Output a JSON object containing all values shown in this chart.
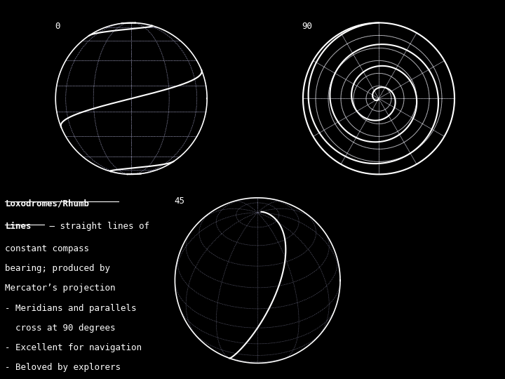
{
  "bg_color": "#000000",
  "text_color": "#ffffff",
  "grid_color": "#ffffff",
  "loxodrome_color": "#ffffff",
  "dotted_color": "#aaaacc",
  "bullets": [
    "Meridians and parallels",
    "  cross at 90 degrees",
    "Excellent for navigation",
    "Beloved by explorers"
  ],
  "label_0": "0",
  "label_90": "90",
  "label_45": "45",
  "font_size_body": 10,
  "font_size_label": 9
}
